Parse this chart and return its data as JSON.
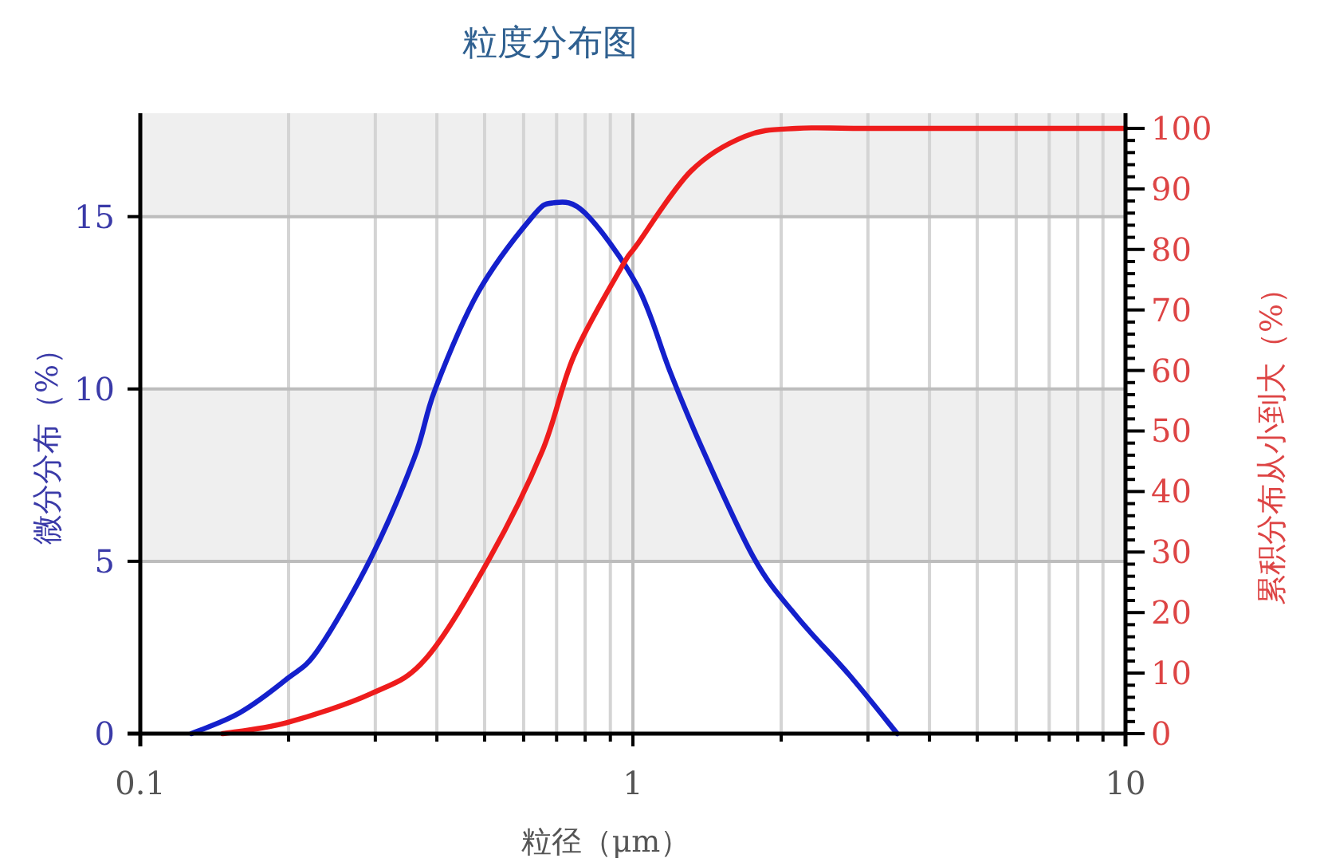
{
  "chart_data": {
    "type": "line",
    "title": "粒度分布图",
    "xlabel": "粒径（μm）",
    "ylabel": "微分分布（%）",
    "y2label": "累积分布从小到大（%）",
    "log": "x",
    "grid": true,
    "xlim": [
      0.1,
      10
    ],
    "ylim": [
      0,
      18
    ],
    "y2lim": [
      0,
      102.5
    ],
    "xticks": [
      {
        "value": 0.1,
        "label": "0.1"
      },
      {
        "value": 0.2,
        "label": null
      },
      {
        "value": 0.3,
        "label": null
      },
      {
        "value": 0.4,
        "label": null
      },
      {
        "value": 0.5,
        "label": null
      },
      {
        "value": 0.6,
        "label": null
      },
      {
        "value": 0.7,
        "label": null
      },
      {
        "value": 0.8,
        "label": null
      },
      {
        "value": 0.9,
        "label": null
      },
      1,
      {
        "value": 2,
        "label": null
      },
      {
        "value": 3,
        "label": null
      },
      {
        "value": 4,
        "label": null
      },
      {
        "value": 5,
        "label": null
      },
      {
        "value": 6,
        "label": null
      },
      {
        "value": 7,
        "label": null
      },
      {
        "value": 8,
        "label": null
      },
      {
        "value": 9,
        "label": null
      },
      10
    ],
    "yticks": [
      0,
      5,
      10,
      15
    ],
    "y2ticks": [
      0,
      {
        "value": 2,
        "label": null
      },
      {
        "value": 4,
        "label": null
      },
      {
        "value": 6,
        "label": null
      },
      {
        "value": 8,
        "label": null
      },
      10,
      {
        "value": 12,
        "label": null
      },
      {
        "value": 14,
        "label": null
      },
      {
        "value": 16,
        "label": null
      },
      {
        "value": 18,
        "label": null
      },
      20,
      {
        "value": 22,
        "label": null
      },
      {
        "value": 24,
        "label": null
      },
      {
        "value": 26,
        "label": null
      },
      {
        "value": 28,
        "label": null
      },
      30,
      {
        "value": 32,
        "label": null
      },
      {
        "value": 34,
        "label": null
      },
      {
        "value": 36,
        "label": null
      },
      {
        "value": 38,
        "label": null
      },
      40,
      {
        "value": 42,
        "label": null
      },
      {
        "value": 44,
        "label": null
      },
      {
        "value": 46,
        "label": null
      },
      {
        "value": 48,
        "label": null
      },
      50,
      {
        "value": 52,
        "label": null
      },
      {
        "value": 54,
        "label": null
      },
      {
        "value": 56,
        "label": null
      },
      {
        "value": 58,
        "label": null
      },
      60,
      {
        "value": 62,
        "label": null
      },
      {
        "value": 64,
        "label": null
      },
      {
        "value": 66,
        "label": null
      },
      {
        "value": 68,
        "label": null
      },
      70,
      {
        "value": 72,
        "label": null
      },
      {
        "value": 74,
        "label": null
      },
      {
        "value": 76,
        "label": null
      },
      {
        "value": 78,
        "label": null
      },
      80,
      {
        "value": 82,
        "label": null
      },
      {
        "value": 84,
        "label": null
      },
      {
        "value": 86,
        "label": null
      },
      {
        "value": 88,
        "label": null
      },
      90,
      {
        "value": 92,
        "label": null
      },
      {
        "value": 94,
        "label": null
      },
      {
        "value": 96,
        "label": null
      },
      {
        "value": 98,
        "label": null
      },
      100
    ],
    "bands": [
      {
        "axis": "y",
        "from": 5,
        "to": 10,
        "color": "#efefef"
      },
      {
        "axis": "y",
        "from": 15,
        "to": 18,
        "color": "#efefef"
      }
    ],
    "line_style": "solid",
    "marker": "none",
    "series": [
      {
        "color": "#1420cc",
        "x": [
          0.127,
          0.159,
          0.199,
          0.23,
          0.294,
          0.36,
          0.397,
          0.485,
          0.621,
          0.689,
          0.8,
          1.02,
          1.19,
          1.38,
          1.76,
          2.15,
          2.75,
          3.44
        ],
        "values": [
          0,
          0.6,
          1.6,
          2.45,
          5.1,
          8.0,
          10.0,
          12.8,
          14.95,
          15.4,
          15.1,
          13.0,
          10.5,
          8.3,
          5.1,
          3.4,
          1.7,
          0
        ]
      },
      {
        "color": "#ee1c1c",
        "axis": "y2",
        "x": [
          0.147,
          0.198,
          0.294,
          0.38,
          0.512,
          0.654,
          0.759,
          0.949,
          1.02,
          1.31,
          1.69,
          2.15,
          3.13,
          10
        ],
        "values": [
          0,
          1.8,
          6.6,
          12.4,
          29,
          46.6,
          62.4,
          77.1,
          80.8,
          92.9,
          98.7,
          100,
          100,
          100
        ]
      }
    ]
  }
}
